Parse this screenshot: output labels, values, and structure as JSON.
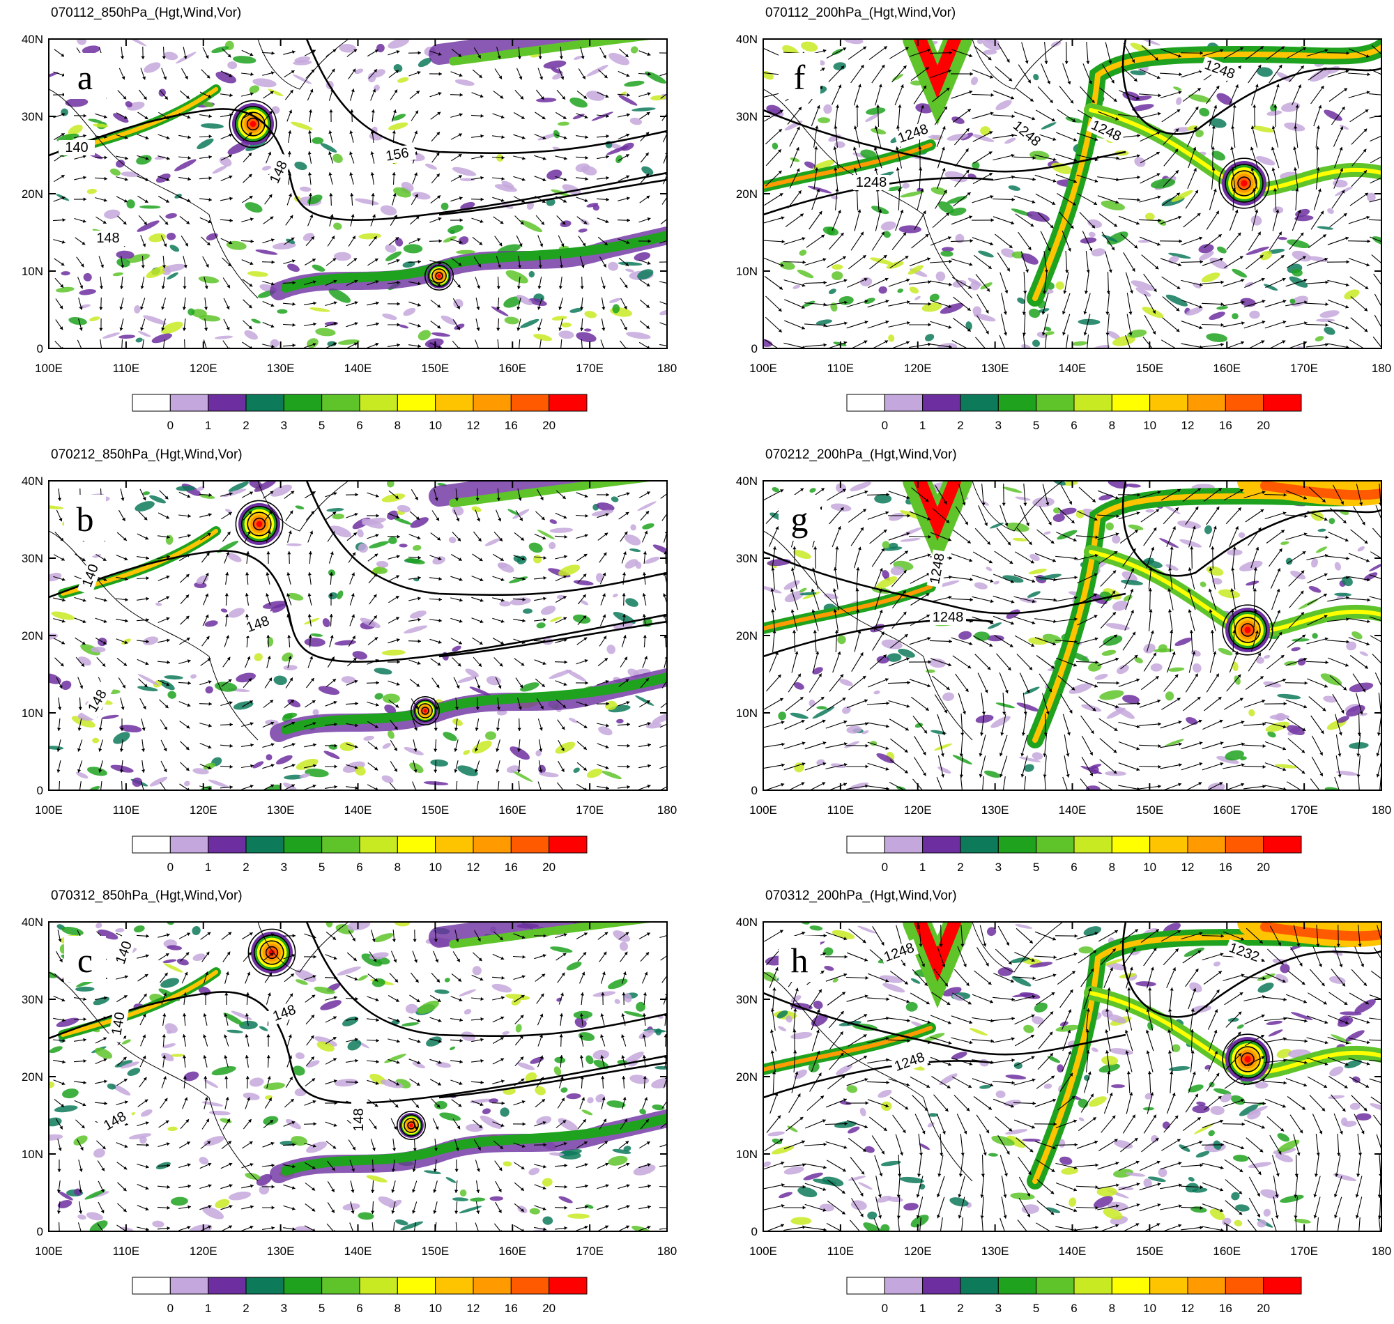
{
  "figure": {
    "lon_ticks": [
      "100E",
      "110E",
      "120E",
      "130E",
      "140E",
      "150E",
      "160E",
      "170E",
      "180"
    ],
    "lat_ticks": [
      "0",
      "10N",
      "20N",
      "30N",
      "40N"
    ],
    "colorbar": {
      "labels": [
        "0",
        "1",
        "2",
        "3",
        "5",
        "6",
        "8",
        "10",
        "12",
        "16",
        "20"
      ],
      "colors": [
        "#ffffff",
        "#c4a7dc",
        "#6d2fa0",
        "#0d7a5a",
        "#1fa31f",
        "#5ec42a",
        "#c8ea23",
        "#ffff00",
        "#ffc400",
        "#ff9a00",
        "#ff5a00",
        "#ff0000"
      ]
    },
    "panels": [
      {
        "id": "a",
        "letter": "a",
        "title": "070112_850hPa_(Hgt,Wind,Vor)",
        "level": "850",
        "contour_labels": [
          "140",
          "148",
          "148",
          "156"
        ]
      },
      {
        "id": "b",
        "letter": "b",
        "title": "070212_850hPa_(Hgt,Wind,Vor)",
        "level": "850",
        "contour_labels": [
          "140",
          "148",
          "148"
        ]
      },
      {
        "id": "c",
        "letter": "c",
        "title": "070312_850hPa_(Hgt,Wind,Vor)",
        "level": "850",
        "contour_labels": [
          "140",
          "140",
          "148",
          "148",
          "148"
        ]
      },
      {
        "id": "f",
        "letter": "f",
        "title": "070112_200hPa_(Hgt,Wind,Vor)",
        "level": "200",
        "contour_labels": [
          "1248",
          "1248",
          "1248",
          "1248",
          "1248"
        ]
      },
      {
        "id": "g",
        "letter": "g",
        "title": "070212_200hPa_(Hgt,Wind,Vor)",
        "level": "200",
        "contour_labels": [
          "1248",
          "1248"
        ]
      },
      {
        "id": "h",
        "letter": "h",
        "title": "070312_200hPa_(Hgt,Wind,Vor)",
        "level": "200",
        "contour_labels": [
          "1248",
          "1248",
          "1232"
        ]
      }
    ]
  }
}
